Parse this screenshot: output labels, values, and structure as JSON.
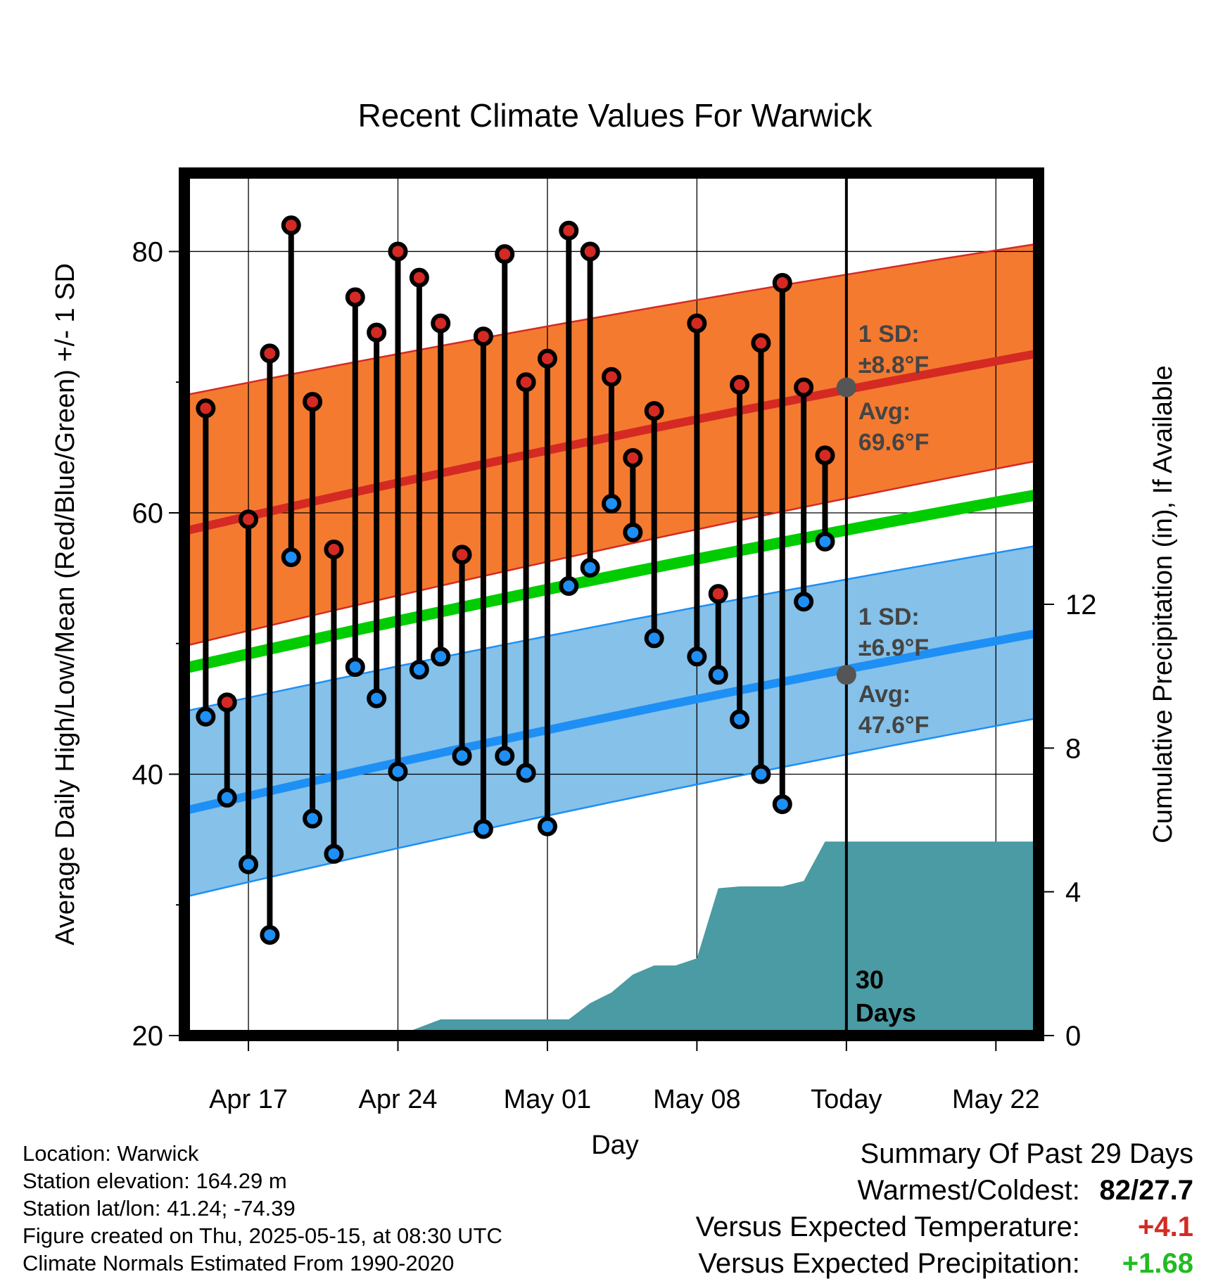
{
  "chart_data": {
    "type": "line",
    "title": "Recent Climate Values For Warwick",
    "xlabel": "Day",
    "ylabel": "Average Daily High/Low/Mean (Red/Blue/Green) +/- 1 SD",
    "y2label": "Cumulative Precipitation (in), If Available",
    "ylim": [
      20,
      86
    ],
    "y2lim": [
      0,
      24
    ],
    "yticks": [
      20,
      40,
      60,
      80
    ],
    "y2ticks": [
      0,
      4,
      8,
      12
    ],
    "x_tick_labels": [
      "Apr 17",
      "Apr 24",
      "May 01",
      "May 08",
      "Today",
      "May 22"
    ],
    "x_range_days": [
      "2025-04-14",
      "2025-05-24"
    ],
    "today_date": "2025-05-15",
    "today_label": "30\nDays",
    "normals": {
      "high_mean_start": 58.6,
      "high_mean_end": 72.2,
      "high_sd_upper_start": 69.0,
      "high_sd_upper_end": 80.6,
      "high_sd_lower_start": 49.8,
      "high_sd_lower_end": 64.0,
      "mean_start": 48.1,
      "mean_end": 61.4,
      "low_mean_start": 37.2,
      "low_mean_end": 50.8,
      "low_sd_upper_start": 44.8,
      "low_sd_upper_end": 57.5,
      "low_sd_lower_start": 30.6,
      "low_sd_lower_end": 44.3
    },
    "annotations": {
      "high_sd": [
        "1 SD:",
        "±8.8°F"
      ],
      "high_avg": [
        "Avg:",
        "69.6°F"
      ],
      "low_sd": [
        "1 SD:",
        "±6.9°F"
      ],
      "low_avg": [
        "Avg:",
        "47.6°F"
      ],
      "high_avg_value": 69.6,
      "low_avg_value": 47.6
    },
    "series": [
      {
        "name": "High",
        "dates": [
          "2025-04-15",
          "2025-04-16",
          "2025-04-17",
          "2025-04-18",
          "2025-04-19",
          "2025-04-20",
          "2025-04-21",
          "2025-04-22",
          "2025-04-23",
          "2025-04-24",
          "2025-04-25",
          "2025-04-26",
          "2025-04-27",
          "2025-04-28",
          "2025-04-29",
          "2025-04-30",
          "2025-05-01",
          "2025-05-02",
          "2025-05-03",
          "2025-05-04",
          "2025-05-05",
          "2025-05-06",
          "2025-05-08",
          "2025-05-09",
          "2025-05-10",
          "2025-05-11",
          "2025-05-12",
          "2025-05-13",
          "2025-05-14"
        ],
        "values": [
          68.0,
          45.5,
          59.5,
          72.2,
          82.0,
          68.5,
          57.2,
          76.5,
          73.8,
          80.0,
          78.0,
          74.5,
          56.8,
          73.5,
          79.8,
          70.0,
          71.8,
          81.6,
          80.0,
          70.4,
          64.2,
          67.8,
          74.5,
          53.8,
          69.8,
          73.0,
          77.6,
          69.6,
          64.4
        ]
      },
      {
        "name": "Low",
        "dates": [
          "2025-04-15",
          "2025-04-16",
          "2025-04-17",
          "2025-04-18",
          "2025-04-19",
          "2025-04-20",
          "2025-04-21",
          "2025-04-22",
          "2025-04-23",
          "2025-04-24",
          "2025-04-25",
          "2025-04-26",
          "2025-04-27",
          "2025-04-28",
          "2025-04-29",
          "2025-04-30",
          "2025-05-01",
          "2025-05-02",
          "2025-05-03",
          "2025-05-04",
          "2025-05-05",
          "2025-05-06",
          "2025-05-08",
          "2025-05-09",
          "2025-05-10",
          "2025-05-11",
          "2025-05-12",
          "2025-05-13",
          "2025-05-14"
        ],
        "values": [
          44.4,
          38.2,
          33.1,
          27.7,
          56.6,
          36.6,
          33.9,
          48.2,
          45.8,
          40.2,
          48.0,
          49.0,
          41.4,
          35.8,
          41.4,
          40.1,
          36.0,
          54.4,
          55.8,
          60.7,
          58.5,
          50.4,
          49.0,
          47.6,
          44.2,
          40.0,
          37.7,
          53.2,
          57.8
        ]
      },
      {
        "name": "Precipitation",
        "dates": [
          "2025-04-24",
          "2025-04-26",
          "2025-05-02",
          "2025-05-03",
          "2025-05-04",
          "2025-05-05",
          "2025-05-06",
          "2025-05-07",
          "2025-05-08",
          "2025-05-09",
          "2025-05-10",
          "2025-05-11",
          "2025-05-12",
          "2025-05-13",
          "2025-05-14",
          "2025-05-24"
        ],
        "values": [
          0,
          0.45,
          0.45,
          0.9,
          1.2,
          1.7,
          1.95,
          1.95,
          2.15,
          4.1,
          4.15,
          4.15,
          4.15,
          4.3,
          5.4,
          5.4
        ]
      }
    ]
  },
  "info": {
    "location": "Location: Warwick",
    "elevation": "Station elevation: 164.29 m",
    "latlon": "Station lat/lon: 41.24; -74.39",
    "created": "Figure created on Thu, 2025-05-15, at 08:30 UTC",
    "normals_source": "Climate Normals Estimated From 1990-2020"
  },
  "summary": {
    "title": "Summary Of Past 29 Days",
    "warm_cold_label": "Warmest/Coldest:",
    "warm_cold_value": "82/27.7",
    "temp_label": "Versus Expected Temperature:",
    "temp_value": "+4.1",
    "precip_label": "Versus Expected Precipitation:",
    "precip_value": "+1.68"
  },
  "colors": {
    "high_band": "#f47a30",
    "high_line": "#d42a23",
    "low_band": "#85c1e9",
    "low_line": "#1e8ff5",
    "mean_line": "#00cc00",
    "precip_fill": "#4a9ba3",
    "high_marker": "#d42a23",
    "low_marker": "#1e8ff5",
    "avg_dot": "#555555",
    "annotation_text": "#444444",
    "temp_delta": "#d42a23",
    "precip_delta": "#22bb22"
  }
}
